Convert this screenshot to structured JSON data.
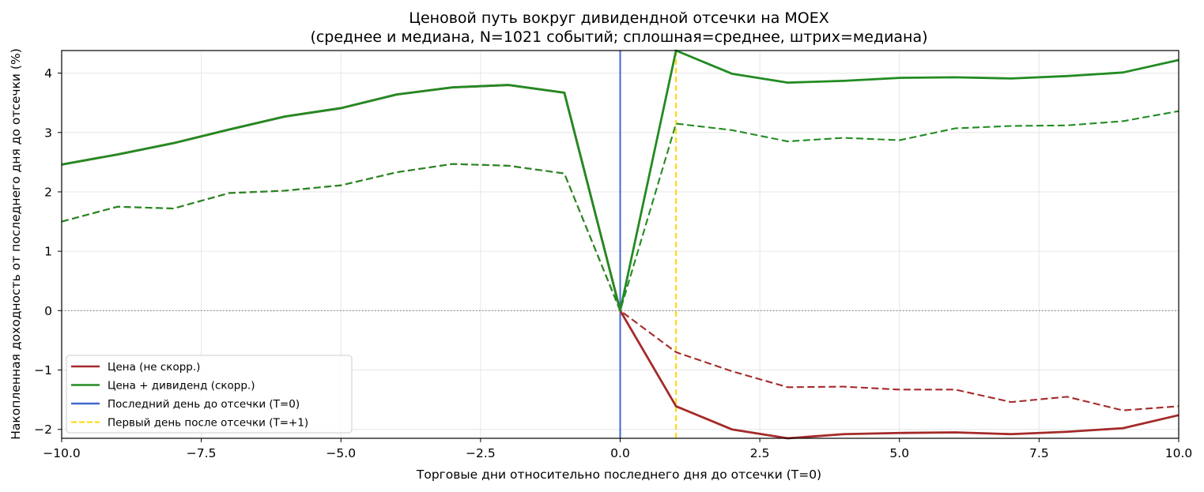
{
  "chart_data": {
    "type": "line",
    "title": "Ценовой путь вокруг дивидендной отсечки на MOEX",
    "subtitle": "(среднее и медиана, N=1021 событий; сплошная=среднее, штрих=медиана)",
    "xlabel": "Торговые дни относительно последнего дня до отсечки (T=0)",
    "ylabel": "Накопленная доходность от последнего дня до отсечки (%)",
    "xlim": [
      -10,
      10
    ],
    "ylim": [
      -2.15,
      4.38
    ],
    "x_ticks": [
      -10,
      -7.5,
      -5,
      -2.5,
      0,
      2.5,
      5,
      7.5,
      10
    ],
    "x_tick_labels": [
      "−10.0",
      "−7.5",
      "−5.0",
      "−2.5",
      "0.0",
      "2.5",
      "5.0",
      "7.5",
      "10.0"
    ],
    "y_ticks": [
      -2,
      -1,
      0,
      1,
      2,
      3,
      4
    ],
    "y_tick_labels": [
      "−2",
      "−1",
      "0",
      "1",
      "2",
      "3",
      "4"
    ],
    "grid": true,
    "legend_position": "lower-left",
    "x": [
      -10,
      -9,
      -8,
      -7,
      -6,
      -5,
      -4,
      -3,
      -2,
      -1,
      0,
      1,
      2,
      3,
      4,
      5,
      6,
      7,
      8,
      9,
      10
    ],
    "series": [
      {
        "name": "Цена (не скорр.)",
        "color": "#a52a2a",
        "style": "solid",
        "values": [
          2.46,
          2.63,
          2.82,
          3.05,
          3.27,
          3.41,
          3.64,
          3.76,
          3.8,
          3.67,
          0.0,
          -1.61,
          -2.0,
          -2.15,
          -2.08,
          -2.06,
          -2.05,
          -2.08,
          -2.04,
          -1.98,
          -1.76
        ]
      },
      {
        "name": "Цена (не скорр.) — медиана",
        "color": "#a52a2a",
        "style": "dashed",
        "values": [
          1.5,
          1.75,
          1.72,
          1.98,
          2.02,
          2.11,
          2.33,
          2.47,
          2.44,
          2.31,
          0.0,
          -0.7,
          -1.02,
          -1.29,
          -1.28,
          -1.33,
          -1.33,
          -1.54,
          -1.45,
          -1.68,
          -1.61
        ]
      },
      {
        "name": "Цена + дивиденд (скорр.)",
        "color": "#228b22",
        "style": "solid",
        "values": [
          2.46,
          2.63,
          2.82,
          3.05,
          3.27,
          3.41,
          3.64,
          3.76,
          3.8,
          3.67,
          0.0,
          4.38,
          3.99,
          3.84,
          3.87,
          3.92,
          3.93,
          3.91,
          3.95,
          4.01,
          4.22
        ]
      },
      {
        "name": "Цена + дивиденд (скорр.) — медиана",
        "color": "#228b22",
        "style": "dashed",
        "values": [
          1.5,
          1.75,
          1.72,
          1.98,
          2.02,
          2.11,
          2.33,
          2.47,
          2.44,
          2.31,
          0.0,
          3.15,
          3.04,
          2.85,
          2.91,
          2.87,
          3.07,
          3.11,
          3.12,
          3.19,
          3.36
        ]
      }
    ],
    "reference_lines": [
      {
        "name": "Последний день до отсечки (T=0)",
        "orientation": "vertical",
        "x": 0,
        "color": "#4169cd",
        "style": "solid"
      },
      {
        "name": "Первый день после отсечки (T=+1)",
        "orientation": "vertical",
        "x": 1,
        "color": "#ffd700",
        "style": "dashed"
      },
      {
        "name": "zero",
        "orientation": "horizontal",
        "y": 0,
        "color": "#808080",
        "style": "dotted"
      }
    ],
    "legend": [
      {
        "label": "Цена (не скорр.)",
        "color": "#a52a2a",
        "style": "solid"
      },
      {
        "label": "Цена + дивиденд (скорр.)",
        "color": "#228b22",
        "style": "solid"
      },
      {
        "label": "Последний день до отсечки (T=0)",
        "color": "#4169cd",
        "style": "solid"
      },
      {
        "label": "Первый день после отсечки (T=+1)",
        "color": "#ffd700",
        "style": "dashed"
      }
    ]
  }
}
